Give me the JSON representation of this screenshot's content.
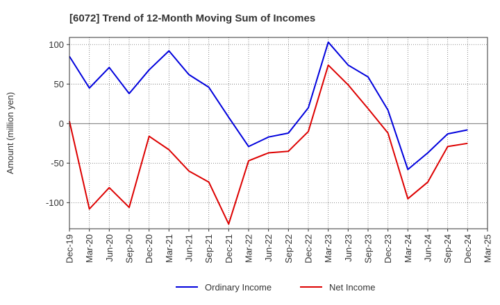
{
  "chart_data": {
    "type": "line",
    "title": "[6072]  Trend of 12-Month Moving Sum of Incomes",
    "xlabel": "",
    "ylabel": "Amount (million yen)",
    "ylim": [
      -133,
      109
    ],
    "yticks": [
      100,
      50,
      0,
      -50,
      -100
    ],
    "grid": true,
    "legend_position": "bottom",
    "x": [
      "Dec-19",
      "Mar-20",
      "Jun-20",
      "Sep-20",
      "Dec-20",
      "Mar-21",
      "Jun-21",
      "Sep-21",
      "Dec-21",
      "Mar-22",
      "Jun-22",
      "Sep-22",
      "Dec-22",
      "Mar-23",
      "Jun-23",
      "Sep-23",
      "Dec-23",
      "Mar-24",
      "Jun-24",
      "Sep-24",
      "Dec-24",
      "Mar-25"
    ],
    "series": [
      {
        "name": "Ordinary Income",
        "color": "#0000dd",
        "values": [
          85,
          45,
          71,
          38,
          68,
          92,
          62,
          46,
          8,
          -29,
          -17,
          -12,
          20,
          103,
          74,
          59,
          17,
          -58,
          -37,
          -13,
          -8,
          null
        ]
      },
      {
        "name": "Net Income",
        "color": "#dd0000",
        "values": [
          3,
          -108,
          -81,
          -106,
          -16,
          -33,
          -60,
          -74,
          -127,
          -47,
          -37,
          -35,
          -10,
          74,
          49,
          19,
          -12,
          -95,
          -74,
          -29,
          -25,
          null
        ]
      }
    ]
  }
}
